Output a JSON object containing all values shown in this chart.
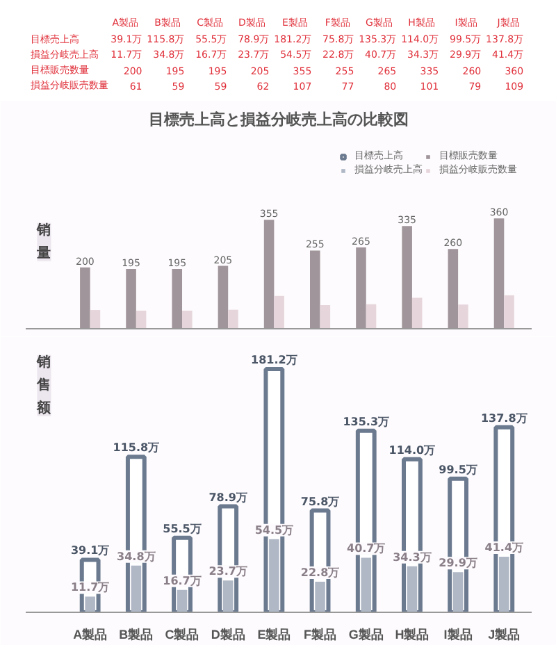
{
  "chart_data": [
    {
      "type": "other",
      "categories": [
        "A製品",
        "B製品",
        "C製品",
        "D製品",
        "E製品",
        "F製品",
        "G製品",
        "H製品",
        "I製品",
        "J製品"
      ],
      "series": [
        {
          "name": "目標売上高",
          "values": [
            39.1,
            115.8,
            55.5,
            78.9,
            181.2,
            75.8,
            135.3,
            114.0,
            99.5,
            137.8
          ],
          "value_labels": [
            "39.1万",
            "115.8万",
            "55.5万",
            "78.9万",
            "181.2万",
            "75.8万",
            "135.3万",
            "114.0万",
            "99.5万",
            "137.8万"
          ]
        },
        {
          "name": "損益分岐売上高",
          "values": [
            11.7,
            34.8,
            16.7,
            23.7,
            54.5,
            22.8,
            40.7,
            34.3,
            29.9,
            41.4
          ],
          "value_labels": [
            "11.7万",
            "34.8万",
            "16.7万",
            "23.7万",
            "54.5万",
            "22.8万",
            "40.7万",
            "34.3万",
            "29.9万",
            "41.4万"
          ]
        },
        {
          "name": "目標販売数量",
          "values": [
            200,
            195,
            195,
            205,
            355,
            255,
            265,
            335,
            260,
            360
          ]
        },
        {
          "name": "損益分岐販売数量",
          "values": [
            61,
            59,
            59,
            62,
            107,
            77,
            80,
            101,
            79,
            109
          ]
        }
      ],
      "data_labels": true
    },
    {
      "type": "bar",
      "title": "目標売上高と損益分岐売上高の比較図",
      "ylabel": "销量",
      "categories": [
        null,
        null,
        null,
        null,
        null,
        null,
        null,
        null,
        null,
        null
      ],
      "series": [
        {
          "name": "目標販売数量",
          "color": "#a0959a",
          "values": [
            200,
            195,
            195,
            205,
            355,
            255,
            265,
            335,
            260,
            360
          ],
          "value_labels": [
            "200",
            "195",
            "195",
            "205",
            "355",
            "255",
            "265",
            "335",
            "260",
            "360"
          ]
        },
        {
          "name": "損益分岐販売数量",
          "color": "#e6d6dc",
          "values": [
            61,
            59,
            59,
            62,
            107,
            77,
            80,
            101,
            79,
            109
          ]
        }
      ],
      "legend": "top right",
      "tick_labels": false
    },
    {
      "type": "bar",
      "ylabel": "销售额",
      "categories": [
        "A製品",
        "B製品",
        "C製品",
        "D製品",
        "E製品",
        "F製品",
        "G製品",
        "H製品",
        "I製品",
        "J製品"
      ],
      "series": [
        {
          "name": "目標売上高",
          "color": "#6b7a8f",
          "values": [
            39.1,
            115.8,
            55.5,
            78.9,
            181.2,
            75.8,
            135.3,
            114.0,
            99.5,
            137.8
          ],
          "value_labels": [
            "39.1万",
            "115.8万",
            "55.5万",
            "78.9万",
            "181.2万",
            "75.8万",
            "135.3万",
            "114.0万",
            "99.5万",
            "137.8万"
          ]
        },
        {
          "name": "損益分岐売上高",
          "color": "#b0b8c6",
          "values": [
            11.7,
            34.8,
            16.7,
            23.7,
            54.5,
            22.8,
            40.7,
            34.3,
            29.9,
            41.4
          ],
          "value_labels": [
            "11.7万",
            "34.8万",
            "16.7万",
            "23.7万",
            "54.5万",
            "22.8万",
            "40.7万",
            "34.3万",
            "29.9万",
            "41.4万"
          ]
        }
      ],
      "tick_labels": "x"
    }
  ]
}
